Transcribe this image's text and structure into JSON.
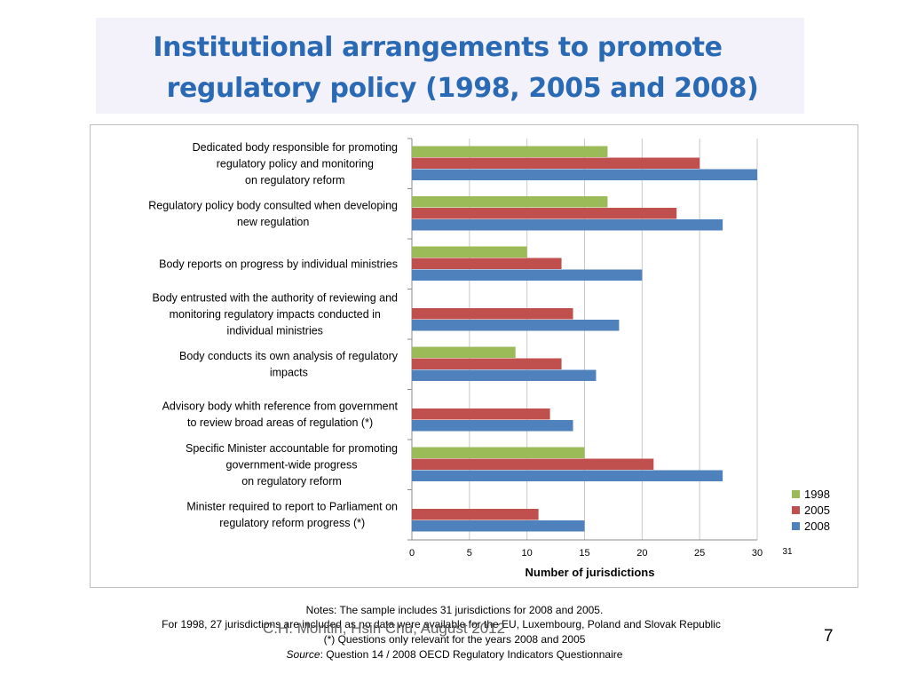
{
  "title": {
    "line1": "Institutional arrangements to promote",
    "line2": "regulatory policy (1998, 2005 and 2008)"
  },
  "colors": {
    "1998": "#9bbb59",
    "2005": "#c0504d",
    "2008": "#4f81bd",
    "title": "#2a6ab4"
  },
  "chart_data": {
    "type": "bar",
    "orientation": "horizontal",
    "categories": [
      [
        "Dedicated body responsible for promoting",
        "regulatory policy and monitoring",
        "on regulatory reform"
      ],
      [
        "Regulatory policy body consulted when developing",
        "new regulation"
      ],
      [
        "Body reports on progress by individual ministries"
      ],
      [
        "Body entrusted with the authority of reviewing and",
        "monitoring regulatory impacts conducted in",
        "individual ministries"
      ],
      [
        "Body conducts its own analysis of regulatory",
        "impacts"
      ],
      [
        "Advisory body whith reference from government",
        "to review broad areas of regulation (*)"
      ],
      [
        "Specific Minister accountable for promoting",
        "government-wide progress",
        "on regulatory reform"
      ],
      [
        "Minister required to report to Parliament on",
        "regulatory reform progress (*)"
      ]
    ],
    "series": [
      {
        "name": "1998",
        "color": "#9bbb59",
        "values": [
          17,
          17,
          10,
          null,
          9,
          null,
          15,
          null
        ]
      },
      {
        "name": "2005",
        "color": "#c0504d",
        "values": [
          25,
          23,
          13,
          14,
          13,
          12,
          21,
          11
        ]
      },
      {
        "name": "2008",
        "color": "#4f81bd",
        "values": [
          30,
          27,
          20,
          18,
          16,
          14,
          27,
          15
        ]
      }
    ],
    "xlabel": "Number of jurisdictions",
    "xlim": [
      0,
      30
    ],
    "xticks": [
      "0",
      "5",
      "10",
      "15",
      "20",
      "25",
      "30"
    ],
    "extra_tick": "31",
    "grid": true,
    "legend": "right"
  },
  "notes": {
    "line1": "Notes: The sample includes 31 jurisdictions for 2008 and 2005.",
    "line2": "For 1998, 27 jurisdictions are included as no data were available for the EU, Luxembourg, Poland and Slovak Republic",
    "line3": "(*) Questions only relevant for the years 2008 and 2005",
    "line4_italic": "Source",
    "line4_rest": ": Question 14 / 2008 OECD Regulatory Indicators Questionnaire"
  },
  "footer": {
    "author": "C.H. Montin, Hsin Chu, August 2012",
    "page": "7"
  }
}
